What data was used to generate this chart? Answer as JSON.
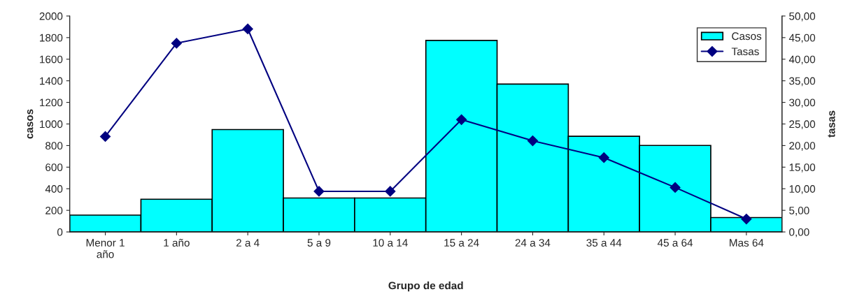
{
  "chart_data": {
    "type": "bar",
    "xlabel": "Grupo de edad",
    "ylabel": "casos",
    "y2label": "tasas",
    "categories": [
      "Menor 1\naño",
      "1 año",
      "2 a 4",
      "5 a 9",
      "10 a 14",
      "15 a 24",
      "24 a 34",
      "35 a 44",
      "45 a 64",
      "Mas 64"
    ],
    "series": [
      {
        "name": "Casos",
        "color": "#00ffff",
        "values": [
          156,
          303,
          948,
          314,
          314,
          1774,
          1370,
          886,
          801,
          133
        ]
      },
      {
        "name": "Tasas",
        "type": "line",
        "axis": "y2",
        "color": "#000080",
        "marker": "diamond",
        "line_style": "solid",
        "values": [
          22.1,
          43.7,
          47.0,
          9.4,
          9.4,
          26.0,
          21.1,
          17.2,
          10.3,
          3.0
        ]
      }
    ],
    "ylim": [
      0,
      2000
    ],
    "yticks": [
      0,
      200,
      400,
      600,
      800,
      1000,
      1200,
      1400,
      1600,
      1800,
      2000
    ],
    "y2lim": [
      0,
      50
    ],
    "y2ticks": [
      {
        "value": 0,
        "label": "0,00"
      },
      {
        "value": 5,
        "label": "5,00"
      },
      {
        "value": 10,
        "label": "10,00"
      },
      {
        "value": 15,
        "label": "15,00"
      },
      {
        "value": 20,
        "label": "20,00"
      },
      {
        "value": 25,
        "label": "25,00"
      },
      {
        "value": 30,
        "label": "30,00"
      },
      {
        "value": 35,
        "label": "35,00"
      },
      {
        "value": 40,
        "label": "40,00"
      },
      {
        "value": 45,
        "label": "45,00"
      },
      {
        "value": 50,
        "label": "50,00"
      }
    ],
    "legend": "top right",
    "grid": false
  }
}
